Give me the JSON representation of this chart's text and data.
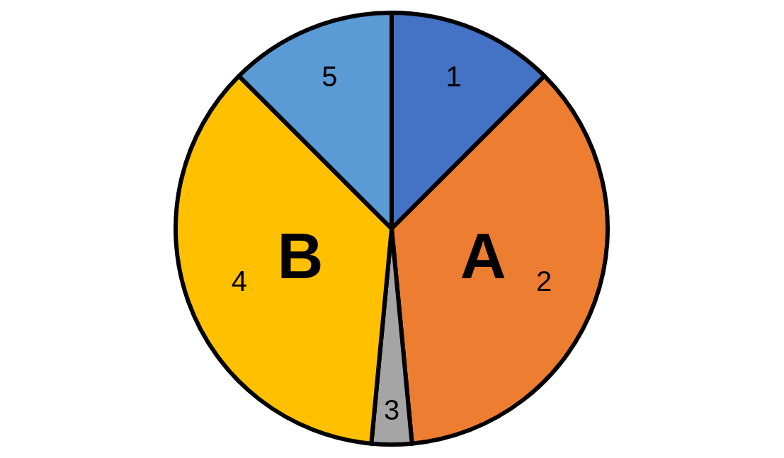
{
  "chart_data": {
    "type": "pie",
    "categories": [
      "1",
      "2",
      "3",
      "4",
      "5"
    ],
    "values": [
      12.5,
      36,
      3,
      36,
      12.5
    ],
    "colors": [
      "#4472c4",
      "#ed7d31",
      "#a5a5a5",
      "#ffc000",
      "#5b9bd5"
    ],
    "annotations": [
      "A",
      "B"
    ]
  }
}
